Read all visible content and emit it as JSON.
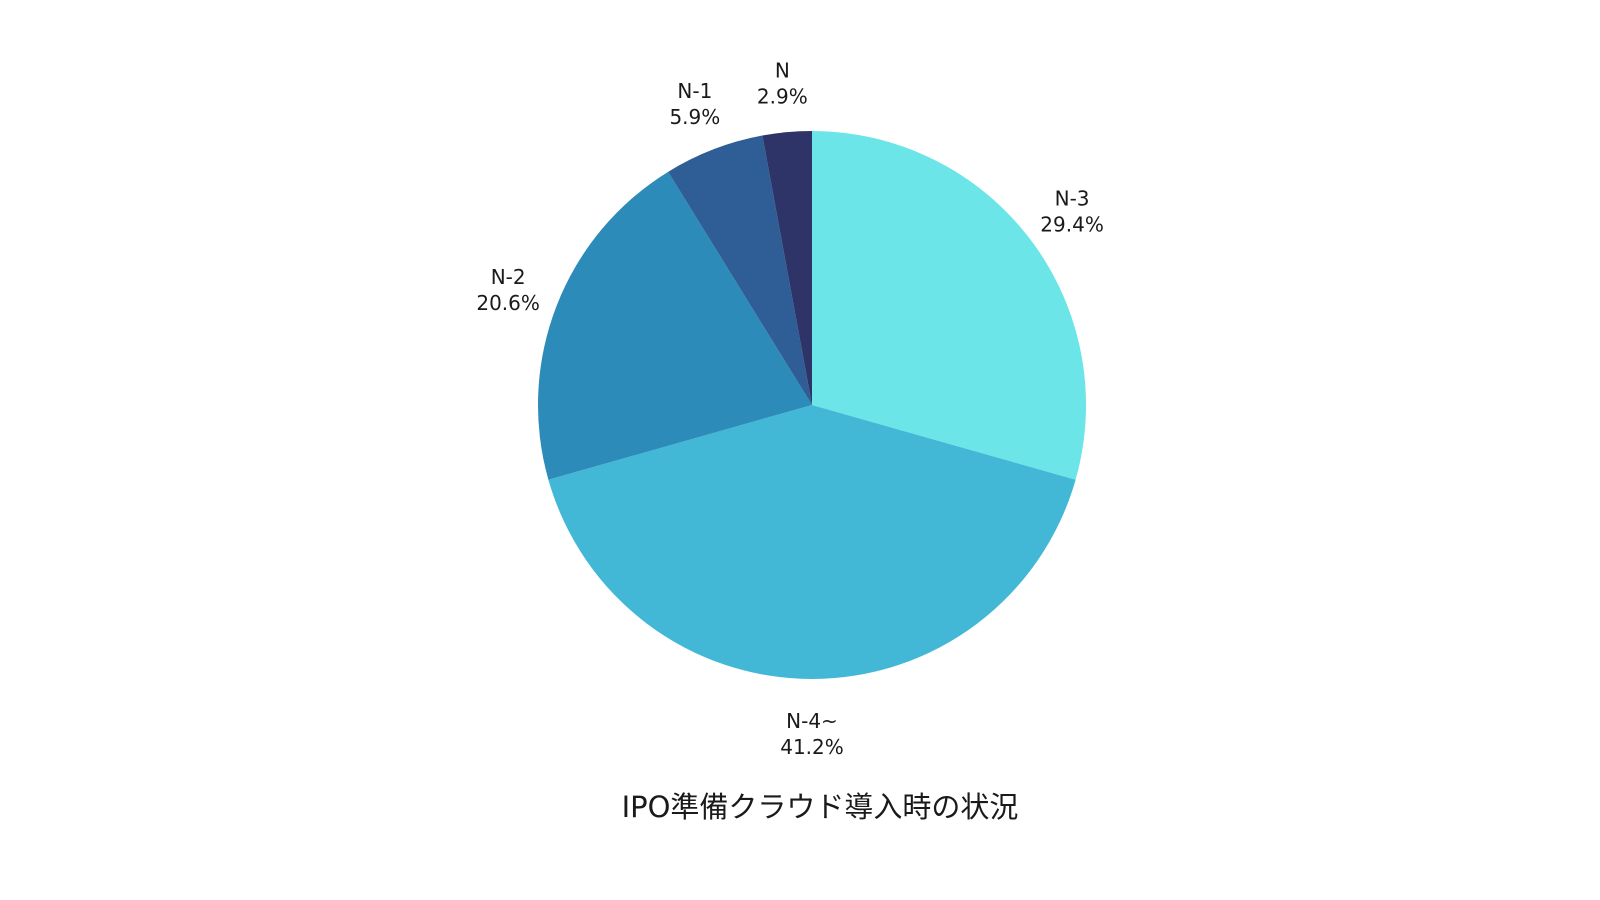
{
  "chart_data": {
    "type": "pie",
    "title": "IPO準備クラウド導入時の状況",
    "start_angle_deg": 0,
    "direction": "clockwise",
    "legend": "none",
    "slices": [
      {
        "label": "N-3",
        "value": 29.4,
        "value_label": "29.4%",
        "color": "#6BE5E8"
      },
      {
        "label": "N-4~",
        "value": 41.2,
        "value_label": "41.2%",
        "color": "#42B8D6"
      },
      {
        "label": "N-2",
        "value": 20.6,
        "value_label": "20.6%",
        "color": "#2D8BB9"
      },
      {
        "label": "N-1",
        "value": 5.9,
        "value_label": "5.9%",
        "color": "#2E5E95"
      },
      {
        "label": "N",
        "value": 2.9,
        "value_label": "2.9%",
        "color": "#2F3468"
      }
    ]
  }
}
